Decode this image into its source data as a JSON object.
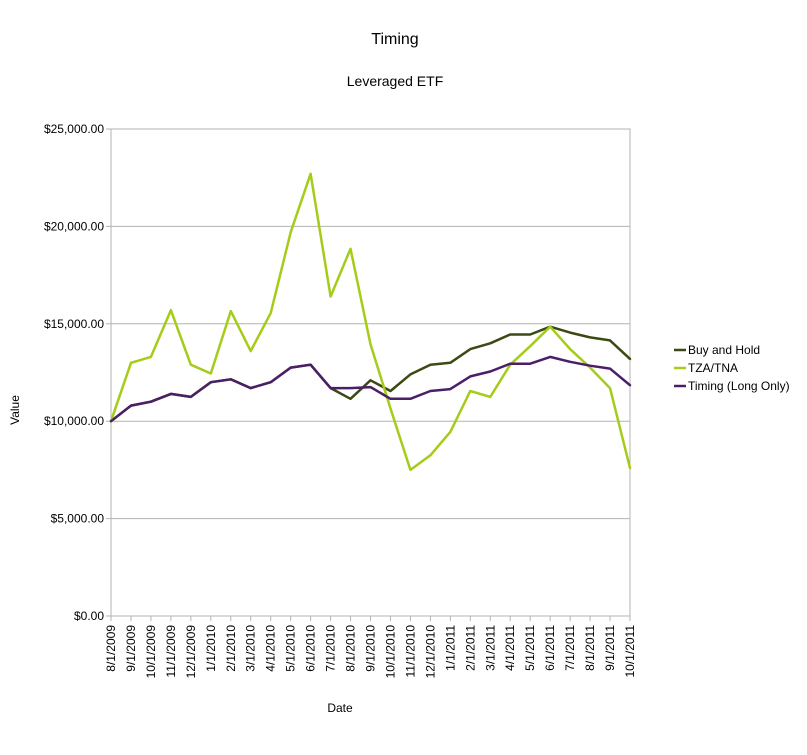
{
  "chart_data": {
    "type": "line",
    "title": "Timing",
    "subtitle": "Leveraged ETF",
    "xlabel": "Date",
    "ylabel": "Value",
    "ylim": [
      0,
      25000
    ],
    "y_ticks": [
      "$0.00",
      "$5,000.00",
      "$10,000.00",
      "$15,000.00",
      "$20,000.00",
      "$25,000.00"
    ],
    "y_tick_values": [
      0,
      5000,
      10000,
      15000,
      20000,
      25000
    ],
    "grid": "horizontal",
    "legend_position": "right",
    "categories": [
      "8/1/2009",
      "9/1/2009",
      "10/1/2009",
      "11/1/2009",
      "12/1/2009",
      "1/1/2010",
      "2/1/2010",
      "3/1/2010",
      "4/1/2010",
      "5/1/2010",
      "6/1/2010",
      "7/1/2010",
      "8/1/2010",
      "9/1/2010",
      "10/1/2010",
      "11/1/2010",
      "12/1/2010",
      "1/1/2011",
      "2/1/2011",
      "3/1/2011",
      "4/1/2011",
      "5/1/2011",
      "6/1/2011",
      "7/1/2011",
      "8/1/2011",
      "9/1/2011",
      "10/1/2011"
    ],
    "series": [
      {
        "name": "Buy and Hold",
        "color": "#3b4a12",
        "values": [
          10000,
          10800,
          11000,
          11400,
          11250,
          12000,
          12150,
          11700,
          12000,
          12750,
          12900,
          11700,
          11150,
          12100,
          11550,
          12400,
          12900,
          13000,
          13700,
          14000,
          14450,
          14450,
          14850,
          14550,
          14300,
          14150,
          13200
        ]
      },
      {
        "name": "TZA/TNA",
        "color": "#a4cc18",
        "values": [
          10000,
          13000,
          13300,
          15700,
          12900,
          12450,
          15650,
          13600,
          15550,
          19700,
          22700,
          16400,
          18850,
          13950,
          10650,
          7500,
          8250,
          9450,
          11550,
          11250,
          12900,
          13850,
          14850,
          13700,
          12750,
          11700,
          7600
        ]
      },
      {
        "name": "Timing (Long Only)",
        "color": "#4a1f68",
        "values": [
          10000,
          10800,
          11000,
          11400,
          11250,
          12000,
          12150,
          11700,
          12000,
          12750,
          12900,
          11700,
          11700,
          11750,
          11150,
          11150,
          11550,
          11650,
          12300,
          12550,
          12950,
          12950,
          13300,
          13050,
          12850,
          12700,
          11850
        ]
      }
    ]
  }
}
